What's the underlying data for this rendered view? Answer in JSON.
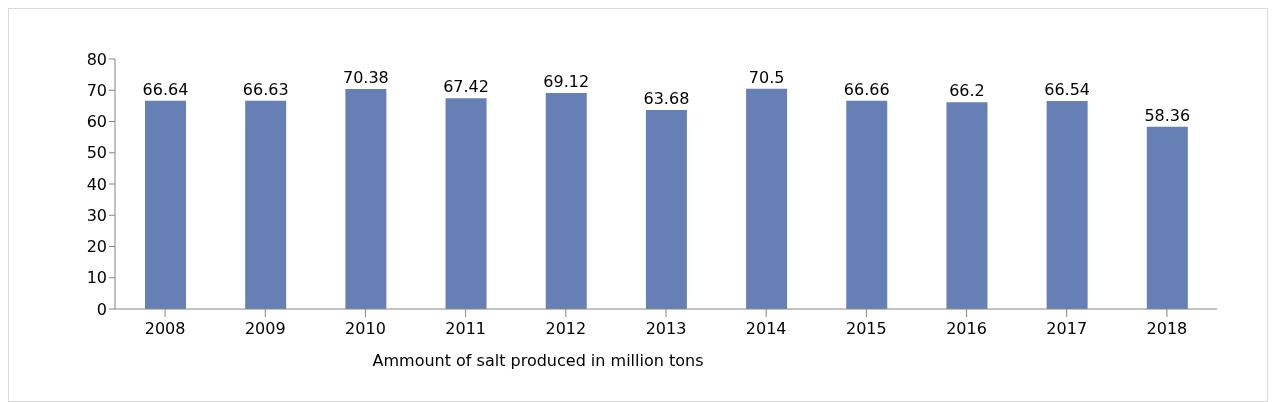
{
  "chart_data": {
    "type": "bar",
    "xlabel": "Ammount of salt produced in million tons",
    "categories": [
      "2008",
      "2009",
      "2010",
      "2011",
      "2012",
      "2013",
      "2014",
      "2015",
      "2016",
      "2017",
      "2018"
    ],
    "values": [
      66.64,
      66.63,
      70.38,
      67.42,
      69.12,
      63.68,
      70.5,
      66.66,
      66.2,
      66.54,
      58.36
    ],
    "color": "#6680b6",
    "ylim": [
      0,
      80
    ],
    "yticks": [
      0,
      10,
      20,
      30,
      40,
      50,
      60,
      70,
      80
    ],
    "grid": false,
    "data_labels": true
  }
}
